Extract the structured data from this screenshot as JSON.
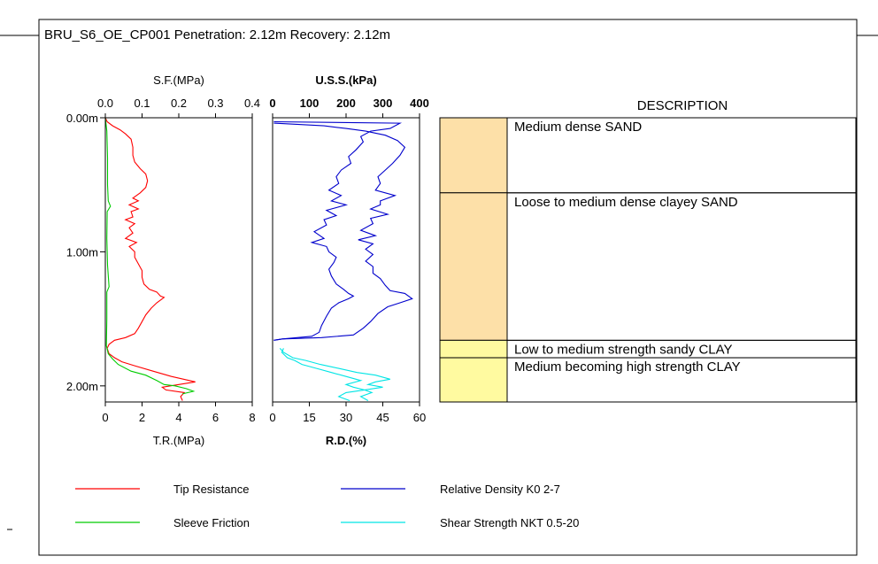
{
  "header": {
    "title": "BRU_S6_OE_CP001 Penetration: 2.12m Recovery: 2.12m"
  },
  "colors": {
    "tip_resistance": "#ff0000",
    "sleeve_friction": "#00cc00",
    "relative_density": "#0000cc",
    "shear_strength": "#00e5e5",
    "sand": "#fde0a8",
    "clay": "#fffaa0"
  },
  "description": {
    "header": "DESCRIPTION",
    "layers": [
      {
        "top": 0.0,
        "bottom": 0.56,
        "label": "Medium dense SAND",
        "fill": "#fde0a8"
      },
      {
        "top": 0.56,
        "bottom": 1.66,
        "label": "Loose to medium dense clayey SAND",
        "fill": "#fde0a8"
      },
      {
        "top": 1.66,
        "bottom": 1.79,
        "label": "Low to medium strength sandy CLAY",
        "fill": "#fffaa0"
      },
      {
        "top": 1.79,
        "bottom": 2.12,
        "label": "Medium becoming high strength CLAY",
        "fill": "#fffaa0"
      }
    ]
  },
  "legend": {
    "items": [
      {
        "label": "Tip Resistance",
        "color": "#ff0000"
      },
      {
        "label": "Sleeve Friction",
        "color": "#00cc00"
      },
      {
        "label": "Relative Density K0 2-7",
        "color": "#0000cc"
      },
      {
        "label": "Shear Strength NKT 0.5-20",
        "color": "#00e5e5"
      }
    ]
  },
  "chart_data": [
    {
      "type": "line",
      "depth_ticks": [
        "0.00m",
        "1.00m",
        "2.00m"
      ],
      "depth_values": [
        0.0,
        1.0,
        2.0
      ],
      "depth_range": [
        0.0,
        2.12
      ],
      "top_axis": {
        "label": "S.F.(MPa)",
        "range": [
          0,
          0.4
        ],
        "ticks": [
          "0.0",
          "0.1",
          "0.2",
          "0.3",
          "0.4"
        ]
      },
      "bottom_axis": {
        "label": "T.R.(MPa)",
        "range": [
          0,
          8
        ],
        "ticks": [
          "0",
          "2",
          "4",
          "6",
          "8"
        ]
      },
      "series": [
        {
          "color": "#ff0000",
          "axis": "bottom",
          "points": [
            [
              0.0,
              0.0
            ],
            [
              0.1,
              0.03
            ],
            [
              0.4,
              0.06
            ],
            [
              0.8,
              0.09
            ],
            [
              1.1,
              0.12
            ],
            [
              1.4,
              0.16
            ],
            [
              1.5,
              0.22
            ],
            [
              1.5,
              0.28
            ],
            [
              1.6,
              0.33
            ],
            [
              1.9,
              0.38
            ],
            [
              2.2,
              0.42
            ],
            [
              2.3,
              0.47
            ],
            [
              2.2,
              0.52
            ],
            [
              1.9,
              0.56
            ],
            [
              1.5,
              0.6
            ],
            [
              1.8,
              0.62
            ],
            [
              1.3,
              0.65
            ],
            [
              1.8,
              0.68
            ],
            [
              1.4,
              0.7
            ],
            [
              1.5,
              0.74
            ],
            [
              1.1,
              0.76
            ],
            [
              1.6,
              0.79
            ],
            [
              1.3,
              0.82
            ],
            [
              1.5,
              0.86
            ],
            [
              1.1,
              0.9
            ],
            [
              1.7,
              0.93
            ],
            [
              1.3,
              0.96
            ],
            [
              1.6,
              1.0
            ],
            [
              1.6,
              1.04
            ],
            [
              1.8,
              1.09
            ],
            [
              2.0,
              1.14
            ],
            [
              2.0,
              1.19
            ],
            [
              2.1,
              1.24
            ],
            [
              2.4,
              1.28
            ],
            [
              2.8,
              1.3
            ],
            [
              3.0,
              1.33
            ],
            [
              3.2,
              1.34
            ],
            [
              2.8,
              1.38
            ],
            [
              2.5,
              1.42
            ],
            [
              2.2,
              1.47
            ],
            [
              2.0,
              1.52
            ],
            [
              1.8,
              1.57
            ],
            [
              1.6,
              1.61
            ],
            [
              1.1,
              1.64
            ],
            [
              0.5,
              1.66
            ],
            [
              0.2,
              1.69
            ],
            [
              0.1,
              1.72
            ],
            [
              0.2,
              1.76
            ],
            [
              0.5,
              1.79
            ],
            [
              0.9,
              1.82
            ],
            [
              1.6,
              1.85
            ],
            [
              2.6,
              1.89
            ],
            [
              3.6,
              1.93
            ],
            [
              4.9,
              1.97
            ],
            [
              4.0,
              1.99
            ],
            [
              3.1,
              2.01
            ],
            [
              3.3,
              2.03
            ],
            [
              4.3,
              2.05
            ],
            [
              4.1,
              2.08
            ],
            [
              4.2,
              2.11
            ]
          ]
        },
        {
          "color": "#00cc00",
          "axis": "top",
          "points": [
            [
              0.0,
              0.0
            ],
            [
              0.004,
              0.1
            ],
            [
              0.006,
              0.3
            ],
            [
              0.006,
              0.5
            ],
            [
              0.008,
              0.62
            ],
            [
              0.014,
              0.66
            ],
            [
              0.005,
              0.7
            ],
            [
              0.004,
              0.9
            ],
            [
              0.006,
              1.1
            ],
            [
              0.01,
              1.26
            ],
            [
              0.004,
              1.3
            ],
            [
              0.004,
              1.5
            ],
            [
              0.003,
              1.7
            ],
            [
              0.008,
              1.76
            ],
            [
              0.02,
              1.8
            ],
            [
              0.035,
              1.84
            ],
            [
              0.07,
              1.89
            ],
            [
              0.11,
              1.92
            ],
            [
              0.14,
              1.96
            ],
            [
              0.16,
              1.99
            ],
            [
              0.19,
              2.0
            ],
            [
              0.22,
              2.02
            ],
            [
              0.24,
              2.04
            ],
            [
              0.21,
              2.06
            ]
          ]
        }
      ]
    },
    {
      "type": "line",
      "top_axis": {
        "label": "U.S.S.(kPa)",
        "range": [
          0,
          400
        ],
        "ticks": [
          "0",
          "100",
          "200",
          "300",
          "400"
        ]
      },
      "bottom_axis": {
        "label": "R.D.(%)",
        "range": [
          0,
          60
        ],
        "ticks": [
          "0",
          "15",
          "30",
          "45",
          "60"
        ]
      },
      "series": [
        {
          "color": "#0000cc",
          "axis": "bottom",
          "points": [
            [
              0.5,
              0.03
            ],
            [
              52,
              0.04
            ],
            [
              48,
              0.08
            ],
            [
              40,
              0.1
            ],
            [
              36,
              0.14
            ],
            [
              37,
              0.18
            ],
            [
              34,
              0.24
            ],
            [
              31,
              0.29
            ],
            [
              32,
              0.34
            ],
            [
              28,
              0.39
            ],
            [
              26,
              0.44
            ],
            [
              27,
              0.49
            ],
            [
              23,
              0.54
            ],
            [
              28,
              0.58
            ],
            [
              24,
              0.62
            ],
            [
              30,
              0.65
            ],
            [
              22,
              0.69
            ],
            [
              26,
              0.73
            ],
            [
              21,
              0.76
            ],
            [
              22,
              0.8
            ],
            [
              17,
              0.85
            ],
            [
              21,
              0.9
            ],
            [
              16,
              0.93
            ],
            [
              22,
              0.96
            ],
            [
              23,
              1.0
            ],
            [
              26,
              1.04
            ],
            [
              25,
              1.08
            ],
            [
              23,
              1.13
            ],
            [
              24,
              1.18
            ],
            [
              26,
              1.24
            ],
            [
              29,
              1.28
            ],
            [
              31,
              1.31
            ],
            [
              33,
              1.33
            ],
            [
              31,
              1.35
            ],
            [
              27,
              1.38
            ],
            [
              24,
              1.42
            ],
            [
              22,
              1.48
            ],
            [
              20,
              1.55
            ],
            [
              19,
              1.6
            ],
            [
              16,
              1.63
            ],
            [
              4,
              1.65
            ],
            [
              0.5,
              1.66
            ]
          ]
        },
        {
          "color": "#0000cc",
          "axis": "bottom",
          "points": [
            [
              0.5,
              0.04
            ],
            [
              21,
              0.06
            ],
            [
              30,
              0.08
            ],
            [
              38,
              0.1
            ],
            [
              46,
              0.13
            ],
            [
              51,
              0.17
            ],
            [
              54,
              0.22
            ],
            [
              52,
              0.28
            ],
            [
              49,
              0.34
            ],
            [
              46,
              0.39
            ],
            [
              43,
              0.44
            ],
            [
              44,
              0.49
            ],
            [
              42,
              0.54
            ],
            [
              50,
              0.58
            ],
            [
              44,
              0.62
            ],
            [
              44,
              0.65
            ],
            [
              40,
              0.68
            ],
            [
              47,
              0.72
            ],
            [
              40,
              0.75
            ],
            [
              41,
              0.79
            ],
            [
              36,
              0.84
            ],
            [
              42,
              0.88
            ],
            [
              35,
              0.91
            ],
            [
              41,
              0.94
            ],
            [
              38,
              0.98
            ],
            [
              41,
              1.02
            ],
            [
              38,
              1.07
            ],
            [
              41,
              1.11
            ],
            [
              41,
              1.16
            ],
            [
              44,
              1.2
            ],
            [
              46,
              1.25
            ],
            [
              48,
              1.29
            ],
            [
              54,
              1.31
            ],
            [
              57,
              1.35
            ],
            [
              52,
              1.38
            ],
            [
              47,
              1.41
            ],
            [
              43,
              1.46
            ],
            [
              40,
              1.52
            ],
            [
              37,
              1.57
            ],
            [
              33,
              1.62
            ],
            [
              20,
              1.64
            ],
            [
              4,
              1.65
            ],
            [
              0.5,
              1.66
            ]
          ]
        },
        {
          "color": "#00e5e5",
          "axis": "top",
          "points": [
            [
              30,
              1.72
            ],
            [
              25,
              1.75
            ],
            [
              40,
              1.79
            ],
            [
              60,
              1.81
            ],
            [
              80,
              1.84
            ],
            [
              120,
              1.87
            ],
            [
              160,
              1.9
            ],
            [
              200,
              1.93
            ],
            [
              240,
              1.96
            ],
            [
              200,
              1.99
            ],
            [
              220,
              2.01
            ],
            [
              250,
              2.03
            ],
            [
              200,
              2.05
            ],
            [
              180,
              2.08
            ],
            [
              210,
              2.11
            ]
          ]
        },
        {
          "color": "#00e5e5",
          "axis": "top",
          "points": [
            [
              20,
              1.72
            ],
            [
              30,
              1.75
            ],
            [
              55,
              1.79
            ],
            [
              90,
              1.81
            ],
            [
              130,
              1.84
            ],
            [
              180,
              1.87
            ],
            [
              230,
              1.9
            ],
            [
              280,
              1.92
            ],
            [
              320,
              1.95
            ],
            [
              280,
              1.97
            ],
            [
              260,
              1.99
            ],
            [
              300,
              2.01
            ],
            [
              250,
              2.03
            ],
            [
              270,
              2.05
            ],
            [
              240,
              2.08
            ],
            [
              260,
              2.11
            ]
          ]
        }
      ]
    }
  ]
}
